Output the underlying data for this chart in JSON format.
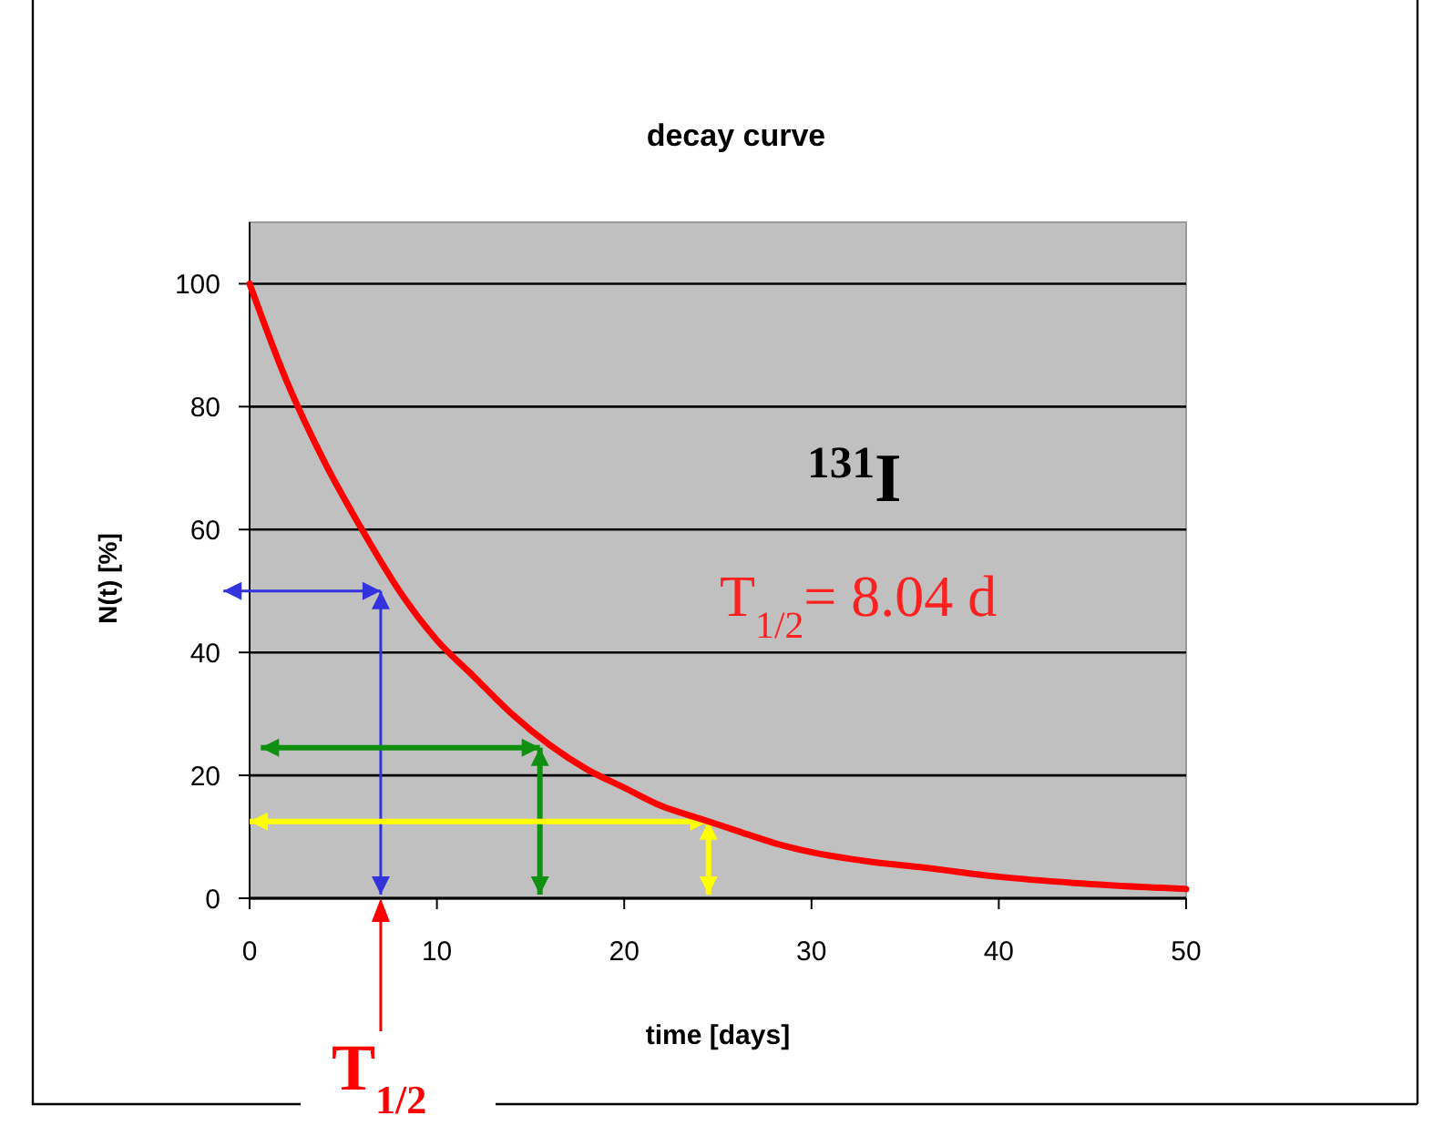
{
  "chart_data": {
    "type": "line",
    "title": "decay curve",
    "xlabel": "time  [days]",
    "ylabel": "N(t)  [%]",
    "x": [
      0,
      2,
      4,
      6,
      8,
      10,
      12,
      14,
      16,
      18,
      20,
      22,
      24,
      26,
      28,
      30,
      33,
      36,
      40,
      44,
      50
    ],
    "series": [
      {
        "color": "#ff0000",
        "values": [
          100,
          84,
          71,
          60,
          50,
          42,
          36,
          30,
          25,
          21,
          18,
          15,
          13,
          11,
          9,
          7.5,
          6,
          5,
          3.5,
          2.5,
          1.5
        ]
      }
    ],
    "xlim": [
      0,
      50
    ],
    "xticks": [
      0,
      10,
      20,
      30,
      40,
      50
    ],
    "ylim": [
      0,
      110
    ],
    "yticks": [
      0,
      20,
      40,
      60,
      80,
      100
    ],
    "grid": "y",
    "marker": "none",
    "line_style": "solid",
    "annotations": [
      "$^{131}$I",
      "T$_{1/2}$= 8.04 d",
      "T$_{1/2}$"
    ]
  }
}
